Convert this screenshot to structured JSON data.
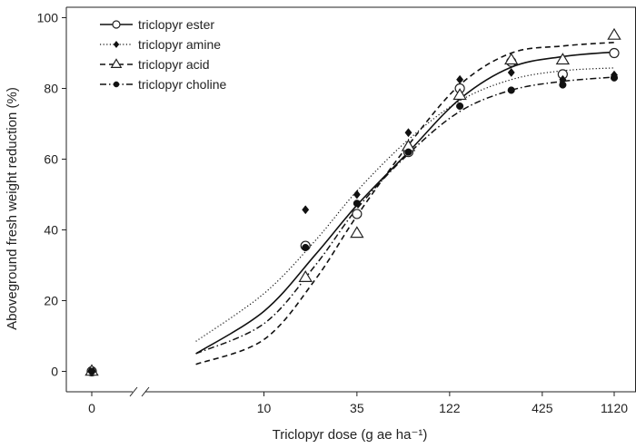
{
  "chart_data": {
    "type": "scatter",
    "xlabel": "Triclopyr dose (g ae ha⁻¹)",
    "ylabel": "Aboveground fresh weight reduction (%)",
    "ylim": [
      0,
      100
    ],
    "x_tick_labels": [
      "0",
      "10",
      "35",
      "122",
      "425",
      "1120"
    ],
    "x_tick_values": [
      0,
      10,
      35,
      122,
      425,
      1120
    ],
    "y_tick_labels": [
      "0",
      "20",
      "40",
      "60",
      "80",
      "100"
    ],
    "y_tick_values": [
      0,
      20,
      40,
      60,
      80,
      100
    ],
    "x_scale": "log (broken axis with separate 0)",
    "legend_position": "top-left",
    "series": [
      {
        "name": "triclopyr ester",
        "marker": "open-circle",
        "line": "solid",
        "points": [
          [
            0,
            0
          ],
          [
            17.5,
            35.5
          ],
          [
            35,
            44.5
          ],
          [
            70,
            62
          ],
          [
            140,
            80
          ],
          [
            280,
            87.5
          ],
          [
            560,
            84
          ],
          [
            1120,
            90
          ]
        ],
        "curve": [
          [
            4,
            5.0
          ],
          [
            10,
            17
          ],
          [
            20,
            33
          ],
          [
            35,
            47
          ],
          [
            70,
            62
          ],
          [
            140,
            77
          ],
          [
            280,
            86
          ],
          [
            560,
            89
          ],
          [
            1120,
            90.3
          ]
        ]
      },
      {
        "name": "triclopyr amine",
        "marker": "filled-diamond",
        "line": "dotted",
        "points": [
          [
            0,
            0
          ],
          [
            17.5,
            45.7
          ],
          [
            35,
            50
          ],
          [
            70,
            67.5
          ],
          [
            140,
            82.5
          ],
          [
            280,
            84.5
          ],
          [
            560,
            82.5
          ],
          [
            1120,
            83.8
          ]
        ],
        "curve": [
          [
            4,
            8.5
          ],
          [
            10,
            22
          ],
          [
            20,
            37
          ],
          [
            35,
            51
          ],
          [
            70,
            65.5
          ],
          [
            140,
            76.5
          ],
          [
            280,
            82.5
          ],
          [
            560,
            85
          ],
          [
            1120,
            85.8
          ]
        ]
      },
      {
        "name": "triclopyr acid",
        "marker": "open-triangle",
        "line": "dashed",
        "points": [
          [
            0,
            0
          ],
          [
            17.5,
            26.5
          ],
          [
            35,
            39
          ],
          [
            70,
            63.5
          ],
          [
            140,
            78
          ],
          [
            280,
            88
          ],
          [
            560,
            88
          ],
          [
            1120,
            95
          ]
        ],
        "curve": [
          [
            4,
            2.0
          ],
          [
            10,
            9
          ],
          [
            20,
            26
          ],
          [
            35,
            44
          ],
          [
            70,
            64
          ],
          [
            140,
            81
          ],
          [
            280,
            90
          ],
          [
            560,
            92
          ],
          [
            1120,
            93
          ]
        ]
      },
      {
        "name": "triclopyr choline",
        "marker": "filled-circle",
        "line": "dash-dot",
        "points": [
          [
            0,
            0
          ],
          [
            17.5,
            35
          ],
          [
            35,
            47.5
          ],
          [
            70,
            62
          ],
          [
            140,
            75
          ],
          [
            280,
            79.5
          ],
          [
            560,
            81
          ],
          [
            1120,
            83
          ]
        ],
        "curve": [
          [
            4,
            5.0
          ],
          [
            10,
            13.5
          ],
          [
            20,
            30
          ],
          [
            35,
            46
          ],
          [
            70,
            61.5
          ],
          [
            140,
            73.5
          ],
          [
            280,
            79.5
          ],
          [
            560,
            82
          ],
          [
            1120,
            83.2
          ]
        ]
      }
    ]
  }
}
